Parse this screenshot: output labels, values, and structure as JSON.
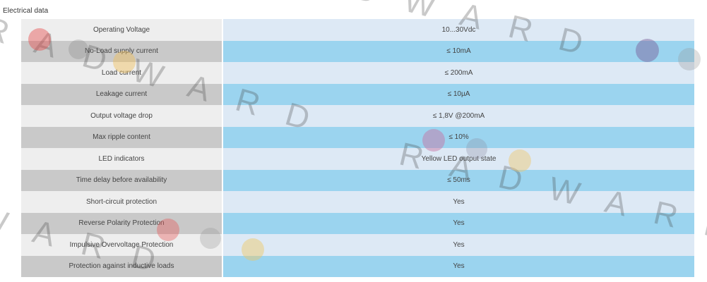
{
  "section": {
    "title": "Electrical data"
  },
  "table": {
    "rows": [
      {
        "label": "Operating Voltage",
        "value": "10...30Vdc"
      },
      {
        "label": "No-Load supply current",
        "value": "≤ 10mA"
      },
      {
        "label": "Load current",
        "value": "≤ 200mA"
      },
      {
        "label": "Leakage current",
        "value": "≤ 10µA"
      },
      {
        "label": "Output voltage drop",
        "value": "≤ 1,8V @200mA"
      },
      {
        "label": "Max ripple content",
        "value": "≤ 10%"
      },
      {
        "label": "LED indicators",
        "value": "Yellow LED output state"
      },
      {
        "label": "Time delay before availability",
        "value": "≤ 50ms"
      },
      {
        "label": "Short-circuit protection",
        "value": "Yes"
      },
      {
        "label": "Reverse Polarity Protection",
        "value": "Yes"
      },
      {
        "label": "Impulsive Overvoltage Protection",
        "value": "Yes"
      },
      {
        "label": "Protection against inductive loads",
        "value": "Yes"
      }
    ]
  },
  "watermark": {
    "text": "RADWARD"
  },
  "colors": {
    "label_light": "#eeeeee",
    "label_dark": "#c9c9c9",
    "value_light": "#dde9f5",
    "value_dark": "#9bd4ef"
  }
}
